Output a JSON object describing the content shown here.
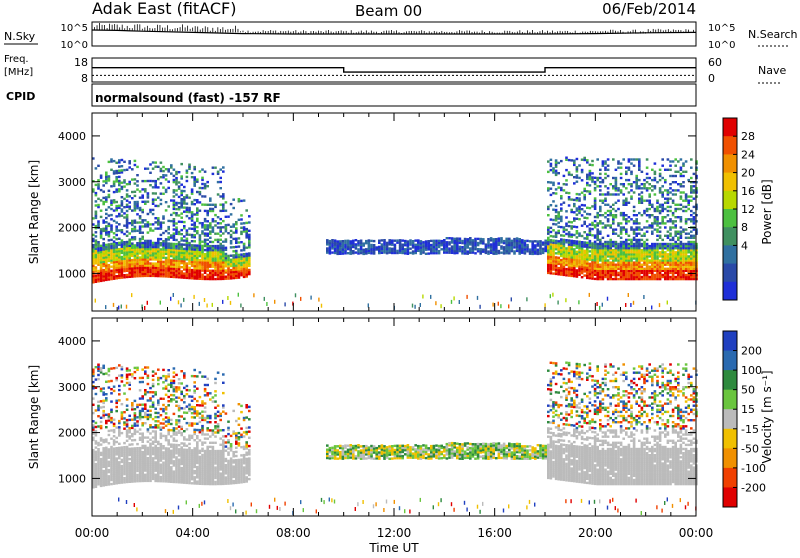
{
  "header": {
    "station": "Adak East (fitACF)",
    "beam": "Beam 00",
    "date": "06/Feb/2014"
  },
  "noise_panel": {
    "left_label": "N.Sky",
    "left_ticks": [
      "10^5",
      "10^0"
    ],
    "right_ticks": [
      "10^5",
      "10^0"
    ],
    "right_label": "N.Search"
  },
  "freq_panel": {
    "left_label_1": "Freq.",
    "left_label_2": "[MHz]",
    "left_ticks": [
      "18",
      "8"
    ],
    "right_ticks": [
      "60",
      "0"
    ],
    "right_label": "Nave"
  },
  "cpid_panel": {
    "label": "CPID",
    "text": "normalsound (fast) -157 RF"
  },
  "power_scale": {
    "title": "Power [dB]",
    "ticks": [
      "28",
      "24",
      "20",
      "16",
      "12",
      "8",
      "4"
    ],
    "colors": [
      "#e00000",
      "#f05000",
      "#f09000",
      "#f0c000",
      "#b8d800",
      "#4cc040",
      "#409060",
      "#3070a0",
      "#2a4aa8",
      "#1f2fd8"
    ]
  },
  "velocity_scale": {
    "title": "Velocity [m s⁻¹]",
    "ticks": [
      "200",
      "100",
      "50",
      "15",
      "-15",
      "-50",
      "-100",
      "-200"
    ],
    "colors": [
      "#2040c0",
      "#2a6ab0",
      "#2e8a3e",
      "#6ac53e",
      "#bbbbbb",
      "#f0c000",
      "#f09000",
      "#f04000",
      "#e00000"
    ]
  },
  "axes": {
    "ylabel": "Slant Range [km]",
    "xlabel": "Time UT",
    "xticks": [
      "00:00",
      "04:00",
      "08:00",
      "12:00",
      "16:00",
      "20:00",
      "00:00"
    ],
    "yticks": [
      "4000",
      "3000",
      "2000",
      "1000"
    ]
  },
  "chart_data": [
    {
      "type": "line",
      "panel": "noise",
      "x": [
        0,
        1,
        2,
        4,
        6,
        8,
        10,
        12,
        14,
        16,
        18,
        20,
        22,
        24
      ],
      "series": [
        {
          "name": "N.Sky",
          "values": [
            3.5,
            3.4,
            3.2,
            2.9,
            2.6,
            2.5,
            2.5,
            2.5,
            2.5,
            2.5,
            2.5,
            2.6,
            2.8,
            2.9
          ]
        }
      ],
      "xlim": [
        0,
        24
      ],
      "ylim": [
        0,
        5
      ]
    },
    {
      "type": "line",
      "panel": "frequency",
      "x": [
        0,
        10,
        10,
        18,
        18,
        24
      ],
      "series": [
        {
          "name": "Freq.",
          "values": [
            14.5,
            14.5,
            12.5,
            12.5,
            14.5,
            14.5
          ]
        },
        {
          "name": "Nave",
          "values": [
            18,
            18,
            18,
            18,
            18,
            18
          ]
        }
      ],
      "xlim": [
        0,
        24
      ],
      "ylim": [
        8,
        18
      ]
    },
    {
      "type": "heatmap",
      "panel": "power",
      "xlabel": "Time UT",
      "ylabel": "Slant Range [km]",
      "xlim": [
        0,
        24
      ],
      "ylim": [
        180,
        4500
      ],
      "colorbar": "Power [dB]",
      "regions": [
        {
          "name": "evening",
          "t_start": 0,
          "t_end": 6.2,
          "r_start": 750,
          "r_end": 3500,
          "power_low": 4,
          "power_high": 28
        },
        {
          "name": "midday band",
          "t_start": 9.2,
          "t_end": 18.0,
          "r_start": 1380,
          "r_end": 1760,
          "power_low": 4,
          "power_high": 12
        },
        {
          "name": "morning",
          "t_start": 18.0,
          "t_end": 24,
          "r_start": 800,
          "r_end": 3500,
          "power_low": 4,
          "power_high": 28
        }
      ]
    },
    {
      "type": "heatmap",
      "panel": "velocity",
      "xlabel": "Time UT",
      "ylabel": "Slant Range [km]",
      "xlim": [
        0,
        24
      ],
      "ylim": [
        180,
        4500
      ],
      "colorbar": "Velocity [m s⁻¹]",
      "regions": [
        {
          "name": "evening",
          "t_start": 0,
          "t_end": 6.2,
          "r_start": 700,
          "r_end": 3500,
          "velocity_low": -15,
          "velocity_high": 15
        },
        {
          "name": "midday band",
          "t_start": 9.2,
          "t_end": 18.0,
          "r_start": 1400,
          "r_end": 1750,
          "velocity_low": -50,
          "velocity_high": 50
        },
        {
          "name": "morning",
          "t_start": 18.0,
          "t_end": 24,
          "r_start": 800,
          "r_end": 3500,
          "velocity_low": -15,
          "velocity_high": 50
        }
      ]
    }
  ]
}
